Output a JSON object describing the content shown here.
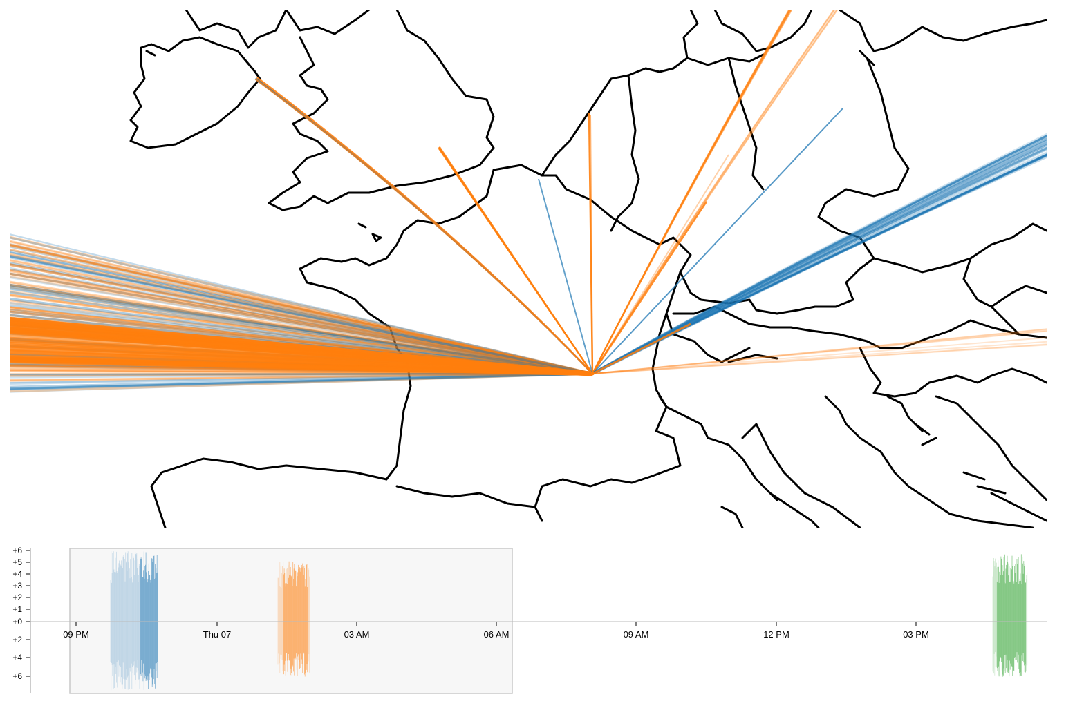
{
  "colors": {
    "blue": "#1f77b4",
    "orange": "#ff7f0e",
    "green": "#2ca02c",
    "coastline": "#000000",
    "brush_fill": "#f7f7f7",
    "brush_stroke": "#c8c8c8"
  },
  "map": {
    "region": "Western and Central Europe"
  },
  "timeline": {
    "x_ticks": [
      "09 PM",
      "Thu 07",
      "03 AM",
      "06 AM",
      "09 AM",
      "12 PM",
      "03 PM"
    ],
    "y_ticks_up": [
      "+6",
      "+5",
      "+4",
      "+3",
      "+2",
      "+1",
      "+0"
    ],
    "y_ticks_down": [
      "+2",
      "+4",
      "+6"
    ],
    "brush": {
      "selected": true
    }
  }
}
